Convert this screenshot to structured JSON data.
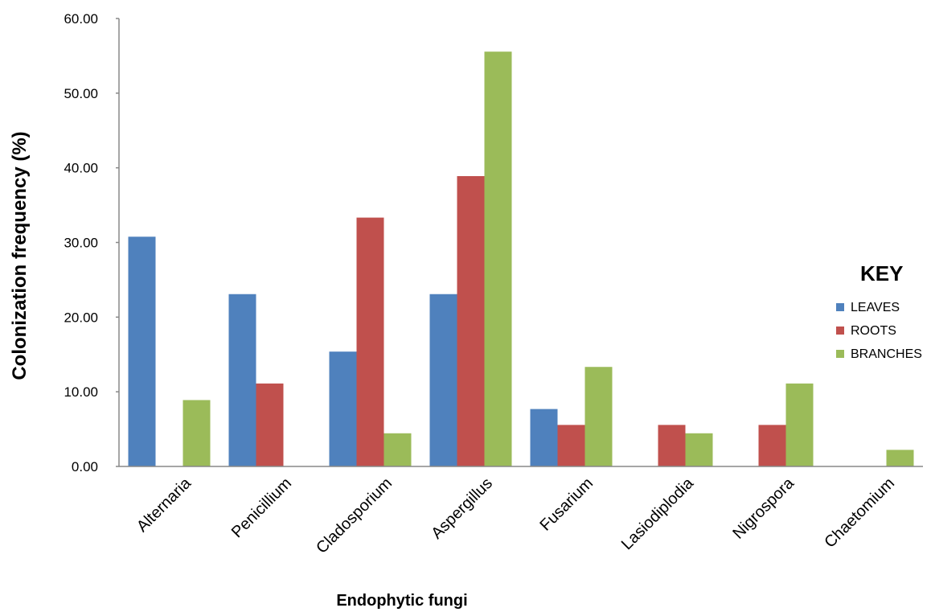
{
  "chart_data": {
    "type": "bar",
    "title": "",
    "xlabel": "Endophytic fungi",
    "ylabel": "Colonization frequency (%)",
    "ylim": [
      0,
      60
    ],
    "yticks": [
      "0.00",
      "10.00",
      "20.00",
      "30.00",
      "40.00",
      "50.00",
      "60.00"
    ],
    "categories": [
      "Alternaria",
      "Penicillium",
      "Cladosporium",
      "Aspergillus",
      "Fusarium",
      "Lasiodiplodia",
      "Nigrospora",
      "Chaetomium"
    ],
    "series": [
      {
        "name": "LEAVES",
        "color": "#4F81BD",
        "values": [
          30.77,
          23.08,
          15.38,
          23.08,
          7.69,
          0,
          0,
          0
        ]
      },
      {
        "name": "ROOTS",
        "color": "#C0504D",
        "values": [
          0,
          11.11,
          33.33,
          38.89,
          5.56,
          5.56,
          5.56,
          0
        ]
      },
      {
        "name": "BRANCHES",
        "color": "#9BBB59",
        "values": [
          8.89,
          0,
          4.44,
          55.56,
          13.33,
          4.44,
          11.11,
          2.22
        ]
      }
    ],
    "legend": {
      "title": "KEY",
      "position": "right"
    },
    "grid": false
  }
}
